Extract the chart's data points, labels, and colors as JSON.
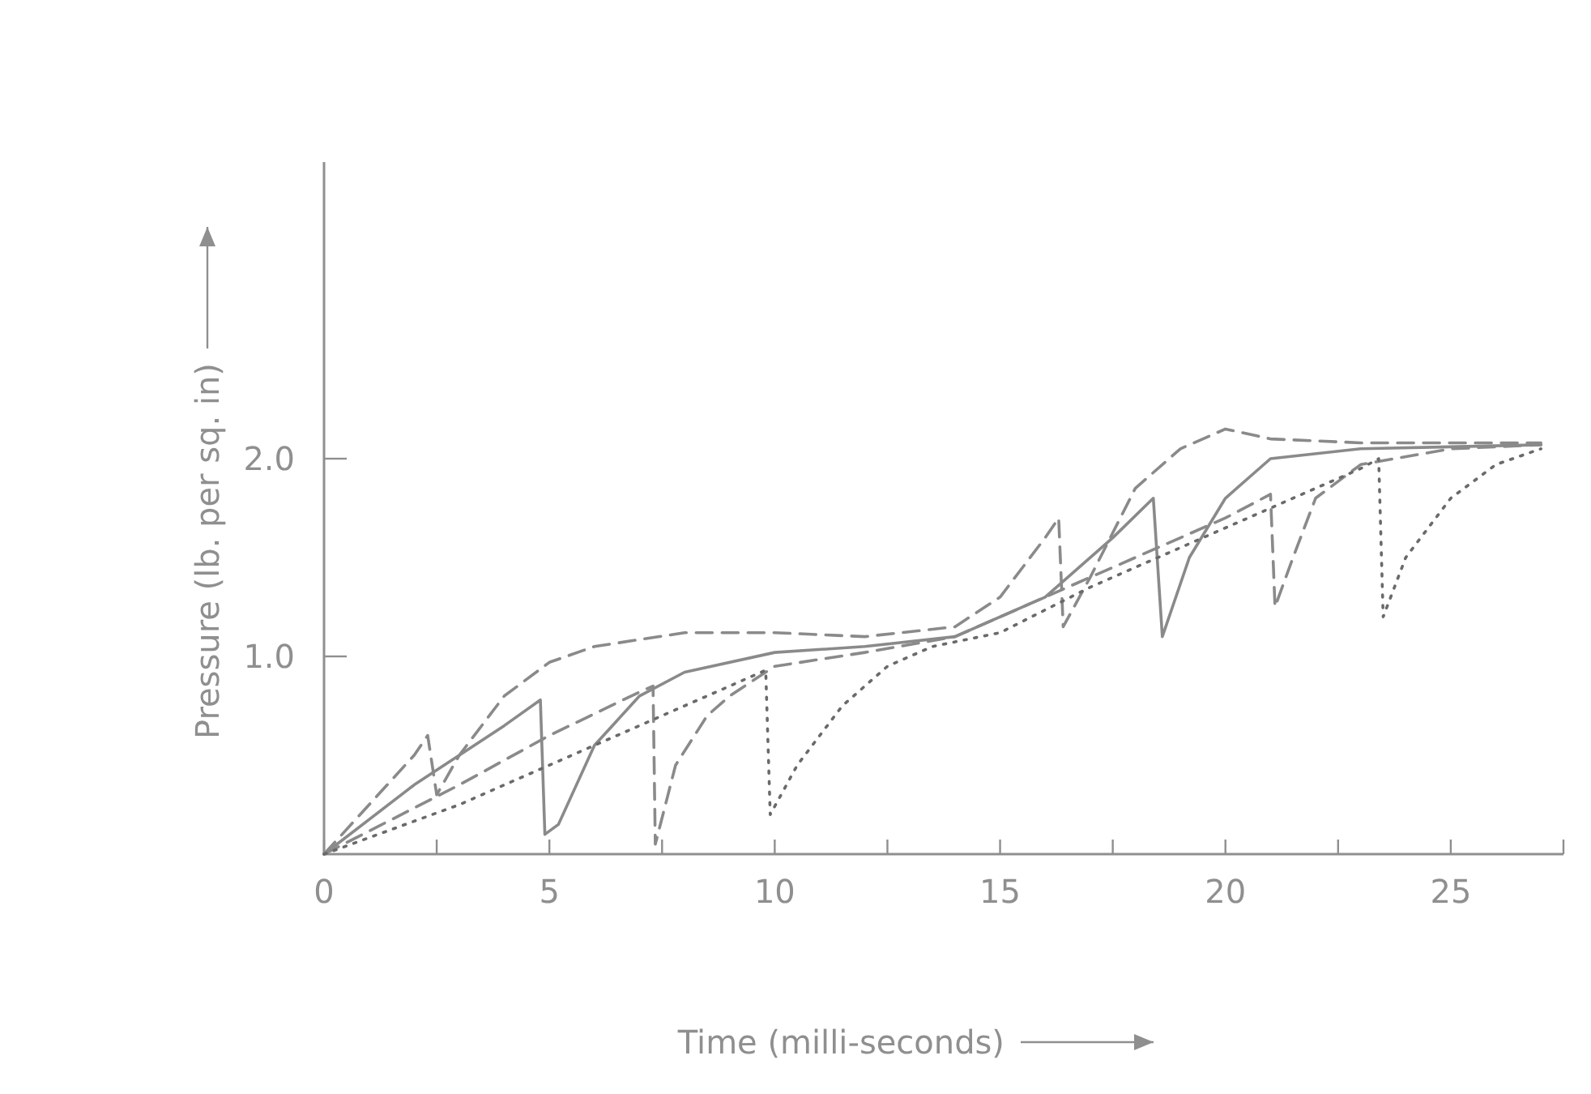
{
  "chart_data": {
    "type": "line",
    "xlabel": "Time (milli-seconds)",
    "ylabel": "Pressure (lb. per sq. in)",
    "xlim": [
      0,
      27.5
    ],
    "ylim": [
      0,
      3.5
    ],
    "xticks": [
      0,
      {
        "value": 2.5,
        "label": null
      },
      5,
      {
        "value": 7.5,
        "label": null
      },
      10,
      {
        "value": 12.5,
        "label": null
      },
      15,
      {
        "value": 17.5,
        "label": null
      },
      20,
      {
        "value": 22.5,
        "label": null
      },
      25,
      {
        "value": 27.5,
        "label": null
      }
    ],
    "yticks": [
      {
        "value": 1,
        "label": "1.0"
      },
      {
        "value": 2,
        "label": "2.0"
      }
    ],
    "grid": false,
    "marker": "none",
    "series": [
      {
        "color": "#8a8a8a",
        "line_style": "dashed",
        "x": [
          0,
          1,
          2,
          2.3,
          2.5,
          3,
          4,
          5,
          6,
          8,
          10,
          12,
          14,
          15,
          16,
          16.3,
          16.4,
          17,
          18,
          19,
          20,
          21,
          23,
          27
        ],
        "values": [
          0,
          0.25,
          0.5,
          0.6,
          0.3,
          0.5,
          0.8,
          0.97,
          1.05,
          1.12,
          1.12,
          1.1,
          1.15,
          1.3,
          1.6,
          1.7,
          1.15,
          1.4,
          1.85,
          2.05,
          2.15,
          2.1,
          2.08,
          2.08
        ]
      },
      {
        "color": "#8a8a8a",
        "line_style": "solid",
        "x": [
          0,
          2,
          4,
          4.8,
          4.9,
          5.2,
          6,
          7,
          8,
          10,
          12,
          14,
          16,
          17.5,
          18.4,
          18.6,
          19.2,
          20,
          21,
          23,
          27
        ],
        "values": [
          0,
          0.35,
          0.65,
          0.78,
          0.1,
          0.15,
          0.55,
          0.8,
          0.92,
          1.02,
          1.05,
          1.1,
          1.3,
          1.6,
          1.8,
          1.1,
          1.5,
          1.8,
          2,
          2.05,
          2.07
        ]
      },
      {
        "color": "#8a8a8a",
        "line_style": "dashed",
        "x": [
          0,
          3,
          5,
          7,
          7.3,
          7.35,
          7.8,
          8.5,
          9,
          10,
          12,
          14,
          16,
          18,
          20,
          21,
          21.1,
          21.5,
          22,
          23,
          25,
          27
        ],
        "values": [
          0,
          0.35,
          0.6,
          0.82,
          0.85,
          0.05,
          0.45,
          0.7,
          0.8,
          0.95,
          1.02,
          1.1,
          1.3,
          1.5,
          1.7,
          1.82,
          1.25,
          1.5,
          1.8,
          1.97,
          2.05,
          2.07
        ]
      },
      {
        "color": "#6a6a6a",
        "line_style": "dotted",
        "x": [
          0,
          3,
          5,
          7,
          9,
          9.8,
          9.9,
          10.5,
          11.5,
          12.5,
          13.5,
          15,
          17,
          19,
          21,
          23,
          23.4,
          23.5,
          24,
          25,
          26,
          27
        ],
        "values": [
          0,
          0.25,
          0.45,
          0.65,
          0.85,
          0.93,
          0.2,
          0.45,
          0.75,
          0.95,
          1.05,
          1.12,
          1.35,
          1.55,
          1.75,
          1.95,
          2,
          1.2,
          1.5,
          1.8,
          1.97,
          2.05
        ]
      }
    ]
  }
}
